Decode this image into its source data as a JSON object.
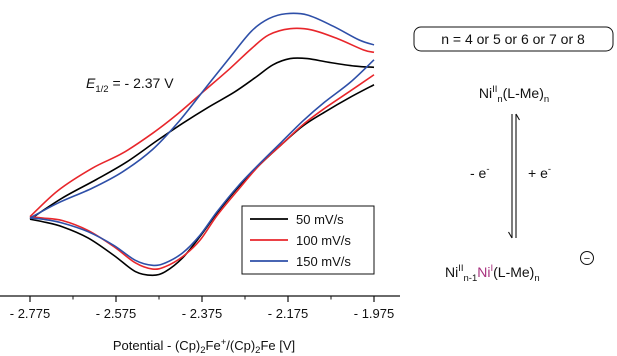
{
  "chart_data": {
    "type": "line",
    "xlabel": "Potential - (Cp)2Fe+/(Cp)2Fe [V]",
    "xlabel_parts": {
      "prefix": "Potential - (Cp)",
      "sub1": "2",
      "fe1": "Fe",
      "sup_plus": "+",
      "mid": "/(Cp)",
      "sub2": "2",
      "tail": "Fe [V]"
    },
    "x_axis": "reversed",
    "xlim": [
      -1.975,
      -2.775
    ],
    "xticks": [
      -2.775,
      -2.575,
      -2.375,
      -2.175,
      -1.975
    ],
    "xtick_labels": [
      "- 2.775",
      "- 2.575",
      "- 2.375",
      "- 2.175",
      "- 1.975"
    ],
    "ylabel": "",
    "y_axis_visible": false,
    "ylim": [
      -1.1,
      1.1
    ],
    "grid": false,
    "legend_position": "bottom-right",
    "annotation": {
      "label_E": "E",
      "label_sub": "1/2",
      "label_value": " = - 2.37 V",
      "e_half_V": -2.37
    },
    "series": [
      {
        "name": "50 mV/s",
        "color": "#000000",
        "forward": [
          [
            -2.775,
            -0.58
          ],
          [
            -2.7,
            -0.41
          ],
          [
            -2.62,
            -0.26
          ],
          [
            -2.55,
            -0.12
          ],
          [
            -2.48,
            0.05
          ],
          [
            -2.42,
            0.19
          ],
          [
            -2.36,
            0.32
          ],
          [
            -2.3,
            0.44
          ],
          [
            -2.25,
            0.56
          ],
          [
            -2.21,
            0.66
          ],
          [
            -2.17,
            0.71
          ],
          [
            -2.13,
            0.71
          ],
          [
            -2.08,
            0.68
          ],
          [
            -2.02,
            0.65
          ],
          [
            -1.975,
            0.64
          ]
        ],
        "reverse": [
          [
            -1.975,
            0.5
          ],
          [
            -2.03,
            0.4
          ],
          [
            -2.09,
            0.28
          ],
          [
            -2.14,
            0.17
          ],
          [
            -2.19,
            0.02
          ],
          [
            -2.24,
            -0.14
          ],
          [
            -2.29,
            -0.32
          ],
          [
            -2.34,
            -0.53
          ],
          [
            -2.38,
            -0.72
          ],
          [
            -2.42,
            -0.89
          ],
          [
            -2.46,
            -1.0
          ],
          [
            -2.49,
            -1.03
          ],
          [
            -2.53,
            -1.0
          ],
          [
            -2.58,
            -0.87
          ],
          [
            -2.64,
            -0.73
          ],
          [
            -2.7,
            -0.64
          ],
          [
            -2.745,
            -0.6
          ],
          [
            -2.775,
            -0.58
          ]
        ]
      },
      {
        "name": "100 mV/s",
        "color": "#e8262b",
        "forward": [
          [
            -2.775,
            -0.56
          ],
          [
            -2.71,
            -0.35
          ],
          [
            -2.63,
            -0.17
          ],
          [
            -2.56,
            -0.05
          ],
          [
            -2.49,
            0.11
          ],
          [
            -2.43,
            0.27
          ],
          [
            -2.37,
            0.45
          ],
          [
            -2.31,
            0.63
          ],
          [
            -2.26,
            0.79
          ],
          [
            -2.22,
            0.9
          ],
          [
            -2.17,
            0.95
          ],
          [
            -2.12,
            0.94
          ],
          [
            -2.06,
            0.87
          ],
          [
            -2.0,
            0.78
          ],
          [
            -1.975,
            0.76
          ]
        ],
        "reverse": [
          [
            -1.975,
            0.58
          ],
          [
            -2.03,
            0.45
          ],
          [
            -2.09,
            0.31
          ],
          [
            -2.14,
            0.18
          ],
          [
            -2.19,
            0.02
          ],
          [
            -2.24,
            -0.14
          ],
          [
            -2.29,
            -0.34
          ],
          [
            -2.34,
            -0.55
          ],
          [
            -2.38,
            -0.75
          ],
          [
            -2.42,
            -0.88
          ],
          [
            -2.46,
            -0.96
          ],
          [
            -2.49,
            -0.98
          ],
          [
            -2.53,
            -0.93
          ],
          [
            -2.58,
            -0.8
          ],
          [
            -2.64,
            -0.67
          ],
          [
            -2.7,
            -0.59
          ],
          [
            -2.745,
            -0.57
          ],
          [
            -2.775,
            -0.56
          ]
        ]
      },
      {
        "name": "150 mV/s",
        "color": "#2e4fa8",
        "forward": [
          [
            -2.775,
            -0.57
          ],
          [
            -2.71,
            -0.45
          ],
          [
            -2.63,
            -0.33
          ],
          [
            -2.56,
            -0.2
          ],
          [
            -2.49,
            -0.02
          ],
          [
            -2.43,
            0.2
          ],
          [
            -2.37,
            0.46
          ],
          [
            -2.31,
            0.72
          ],
          [
            -2.26,
            0.93
          ],
          [
            -2.22,
            1.03
          ],
          [
            -2.18,
            1.07
          ],
          [
            -2.13,
            1.06
          ],
          [
            -2.07,
            0.97
          ],
          [
            -2.01,
            0.86
          ],
          [
            -1.975,
            0.82
          ]
        ],
        "reverse": [
          [
            -1.975,
            0.7
          ],
          [
            -2.03,
            0.52
          ],
          [
            -2.09,
            0.36
          ],
          [
            -2.14,
            0.21
          ],
          [
            -2.19,
            0.04
          ],
          [
            -2.24,
            -0.13
          ],
          [
            -2.29,
            -0.31
          ],
          [
            -2.34,
            -0.52
          ],
          [
            -2.38,
            -0.71
          ],
          [
            -2.42,
            -0.85
          ],
          [
            -2.46,
            -0.93
          ],
          [
            -2.49,
            -0.95
          ],
          [
            -2.53,
            -0.91
          ],
          [
            -2.58,
            -0.79
          ],
          [
            -2.64,
            -0.68
          ],
          [
            -2.7,
            -0.61
          ],
          [
            -2.745,
            -0.58
          ],
          [
            -2.775,
            -0.57
          ]
        ]
      }
    ]
  },
  "scheme": {
    "condition": "n = 4 or 5 or 6 or 7 or 8",
    "top": {
      "ni": "Ni",
      "ox": "II",
      "n": "n",
      "ligand": "(L-Me)",
      "n2": "n"
    },
    "bottom": {
      "ni": "Ni",
      "ox": "II",
      "n_minus_1": "n-1",
      "ni_reduced": "Ni",
      "ox_reduced": "I",
      "ligand": "(L-Me)",
      "n2": "n",
      "charge": "−"
    },
    "left_label": {
      "base": "- e",
      "sup": "-"
    },
    "right_label": {
      "base": "+ e",
      "sup": "-"
    },
    "highlight_color": "#a8327f"
  }
}
